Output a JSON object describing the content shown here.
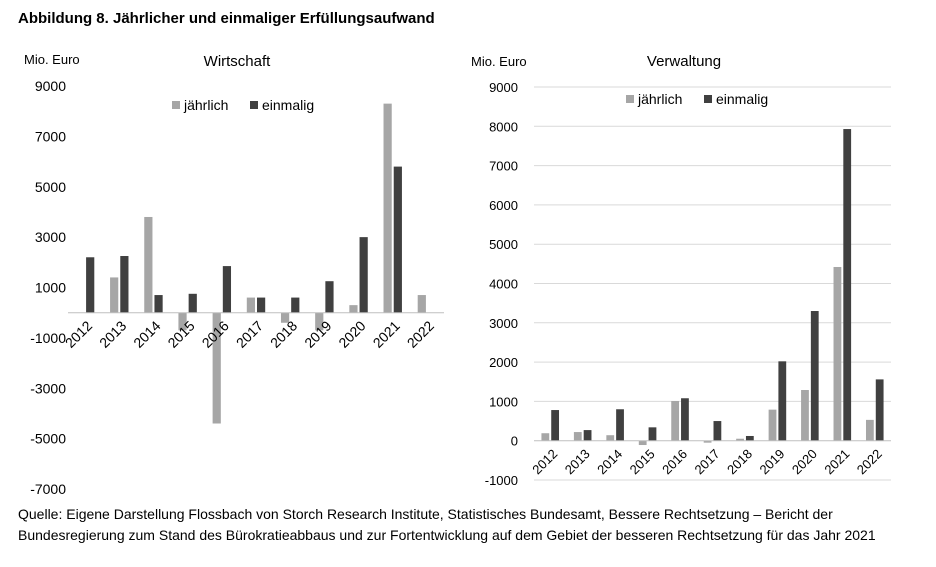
{
  "figure_title": "Abbildung 8. Jährlicher und einmaliger Erfüllungsaufwand",
  "caption": "Quelle: Eigene Darstellung Flossbach von Storch Research Institute, Statistisches Bundesamt, Bessere Rechtsetzung – Bericht der Bundesregierung zum Stand des Bürokratieabbaus und zur Fortentwicklung auf dem Gebiet der besseren Rechtsetzung für das Jahr 2021",
  "colors": {
    "jaehrlich": "#a6a6a6",
    "einmalig": "#404040",
    "grid": "#d9d9d9",
    "axis": "#bfbfbf"
  },
  "chart_data": [
    {
      "type": "bar",
      "title": "Wirtschaft",
      "ylabel": "Mio. Euro",
      "categories": [
        "2012",
        "2013",
        "2014",
        "2015",
        "2016",
        "2017",
        "2018",
        "2019",
        "2020",
        "2021",
        "2022"
      ],
      "series": [
        {
          "name": "jährlich",
          "values": [
            0,
            1400,
            3800,
            -700,
            -4400,
            600,
            -400,
            -700,
            300,
            8300,
            700
          ]
        },
        {
          "name": "einmalig",
          "values": [
            2200,
            2250,
            700,
            750,
            1850,
            600,
            600,
            1250,
            3000,
            5800,
            0
          ]
        }
      ],
      "ylim": [
        -7000,
        9000
      ],
      "yticks": [
        9000,
        7000,
        5000,
        3000,
        1000,
        -1000,
        -3000,
        -5000,
        -7000
      ],
      "grid": false,
      "legend": "top-center"
    },
    {
      "type": "bar",
      "title": "Verwaltung",
      "ylabel": "Mio. Euro",
      "categories": [
        "2012",
        "2013",
        "2014",
        "2015",
        "2016",
        "2017",
        "2018",
        "2019",
        "2020",
        "2021",
        "2022"
      ],
      "series": [
        {
          "name": "jährlich",
          "values": [
            190,
            220,
            140,
            -110,
            1010,
            -50,
            50,
            790,
            1290,
            4420,
            530
          ]
        },
        {
          "name": "einmalig",
          "values": [
            780,
            270,
            800,
            340,
            1080,
            500,
            120,
            2020,
            3300,
            7930,
            1560
          ]
        }
      ],
      "ylim": [
        -1000,
        9000
      ],
      "yticks": [
        9000,
        8000,
        7000,
        6000,
        5000,
        4000,
        3000,
        2000,
        1000,
        0,
        -1000
      ],
      "grid": true,
      "legend": "top-center"
    }
  ]
}
